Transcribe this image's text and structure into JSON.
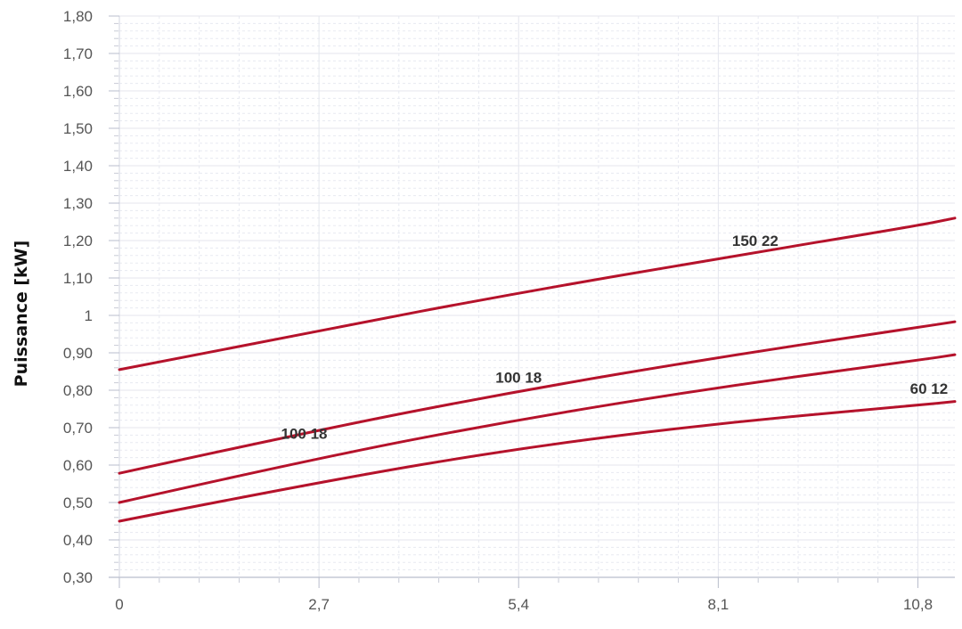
{
  "chart_data": {
    "type": "line",
    "title": "",
    "xlabel": "",
    "ylabel": "Puissance [kW]",
    "xlim": [
      0,
      11.3
    ],
    "ylim": [
      0.3,
      1.8
    ],
    "x_ticks": [
      "0",
      "2,7",
      "5,4",
      "8,1",
      "10,8"
    ],
    "x_tick_values": [
      0,
      2.7,
      5.4,
      8.1,
      10.8
    ],
    "y_ticks": [
      "0,30",
      "0,40",
      "0,50",
      "0,60",
      "0,70",
      "0,80",
      "0,90",
      "1",
      "1,10",
      "1,20",
      "1,30",
      "1,40",
      "1,50",
      "1,60",
      "1,70",
      "1,80"
    ],
    "y_tick_values": [
      0.3,
      0.4,
      0.5,
      0.6,
      0.7,
      0.8,
      0.9,
      1.0,
      1.1,
      1.2,
      1.3,
      1.4,
      1.5,
      1.6,
      1.7,
      1.8
    ],
    "grid": true,
    "line_color": "#b5122b",
    "series": [
      {
        "x": [
          0,
          2.7,
          5.4,
          8.1,
          10.8,
          11.3
        ],
        "values": [
          0.855,
          0.96,
          1.06,
          1.152,
          1.24,
          1.26
        ]
      },
      {
        "x": [
          0,
          2.7,
          5.4,
          8.1,
          10.8,
          11.3
        ],
        "values": [
          0.578,
          0.695,
          0.798,
          0.888,
          0.968,
          0.983
        ]
      },
      {
        "x": [
          0,
          2.7,
          5.4,
          8.1,
          10.8,
          11.3
        ],
        "values": [
          0.5,
          0.62,
          0.722,
          0.808,
          0.88,
          0.895
        ]
      },
      {
        "x": [
          0,
          2.7,
          5.4,
          8.1,
          10.8,
          11.3
        ],
        "values": [
          0.45,
          0.555,
          0.645,
          0.712,
          0.76,
          0.77
        ]
      }
    ],
    "annotations": [
      {
        "text": "150 22",
        "x": 8.6,
        "y": 1.2
      },
      {
        "text": "100 18",
        "x": 5.4,
        "y": 0.835
      },
      {
        "text": "100 18",
        "x": 2.5,
        "y": 0.685
      },
      {
        "text": "60 12",
        "x": 10.95,
        "y": 0.805
      }
    ]
  }
}
